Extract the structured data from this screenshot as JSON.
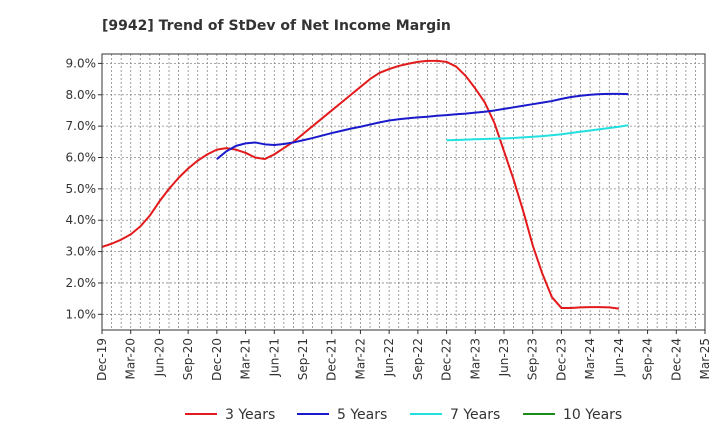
{
  "chart_data": {
    "type": "line",
    "title": "[9942]  Trend of StDev of Net Income Margin",
    "xlabel": "",
    "ylabel": "",
    "x_ticks": [
      "Dec-19",
      "Mar-20",
      "Jun-20",
      "Sep-20",
      "Dec-20",
      "Mar-21",
      "Jun-21",
      "Sep-21",
      "Dec-21",
      "Mar-22",
      "Jun-22",
      "Sep-22",
      "Dec-22",
      "Mar-23",
      "Jun-23",
      "Sep-23",
      "Dec-23",
      "Mar-24",
      "Jun-24",
      "Sep-24",
      "Dec-24",
      "Mar-25"
    ],
    "y_ticks": [
      "1.0%",
      "2.0%",
      "3.0%",
      "4.0%",
      "5.0%",
      "6.0%",
      "7.0%",
      "8.0%",
      "9.0%"
    ],
    "ylim": [
      0.5,
      9.3
    ],
    "grid": true,
    "legend_position": "bottom",
    "series": [
      {
        "name": "3 Years",
        "color": "#e31a1c",
        "start_index": 0,
        "values": [
          3.15,
          3.25,
          3.38,
          3.55,
          3.8,
          4.15,
          4.6,
          5.0,
          5.35,
          5.65,
          5.9,
          6.1,
          6.25,
          6.3,
          6.25,
          6.15,
          6.0,
          5.95,
          6.1,
          6.3,
          6.5,
          6.75,
          7.0,
          7.25,
          7.5,
          7.75,
          8.0,
          8.25,
          8.5,
          8.7,
          8.82,
          8.92,
          8.99,
          9.05,
          9.08,
          9.08,
          9.05,
          8.9,
          8.6,
          8.2,
          7.75,
          7.1,
          6.2,
          5.3,
          4.3,
          3.2,
          2.3,
          1.55,
          1.2,
          1.2,
          1.22,
          1.23,
          1.23,
          1.22,
          1.18
        ]
      },
      {
        "name": "5 Years",
        "color": "#1a1acc",
        "start_index": 12,
        "values": [
          5.95,
          6.2,
          6.37,
          6.45,
          6.48,
          6.42,
          6.4,
          6.43,
          6.48,
          6.55,
          6.62,
          6.7,
          6.78,
          6.85,
          6.92,
          6.98,
          7.05,
          7.12,
          7.18,
          7.22,
          7.25,
          7.28,
          7.3,
          7.33,
          7.35,
          7.38,
          7.4,
          7.43,
          7.46,
          7.5,
          7.55,
          7.6,
          7.65,
          7.7,
          7.75,
          7.8,
          7.87,
          7.93,
          7.97,
          8.0,
          8.02,
          8.03,
          8.03,
          8.02
        ]
      },
      {
        "name": "7 Years",
        "color": "#22e0e0",
        "start_index": 36,
        "values": [
          6.55,
          6.56,
          6.57,
          6.58,
          6.59,
          6.6,
          6.61,
          6.62,
          6.64,
          6.66,
          6.68,
          6.71,
          6.74,
          6.78,
          6.82,
          6.86,
          6.9,
          6.94,
          6.98,
          7.03
        ]
      },
      {
        "name": "10 Years",
        "color": "#1a8a1a",
        "start_index": 0,
        "values": []
      }
    ]
  }
}
